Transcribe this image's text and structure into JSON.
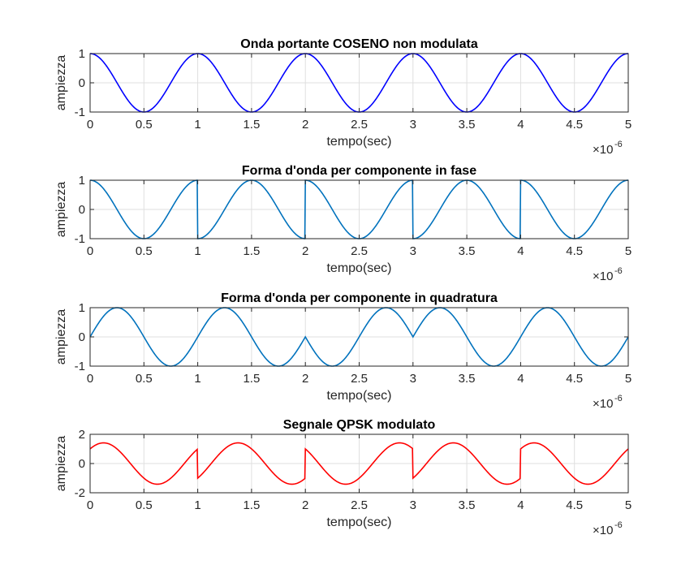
{
  "chart_data": [
    {
      "type": "line",
      "title": "Onda portante COSENO non modulata",
      "xlabel": "tempo(sec)",
      "ylabel": "ampiezza",
      "x_exponent_label": "×10",
      "x_exponent": "-6",
      "xlim": [
        0,
        5
      ],
      "ylim": [
        -1,
        1
      ],
      "xticks": [
        0,
        0.5,
        1,
        1.5,
        2,
        2.5,
        3,
        3.5,
        4,
        4.5,
        5
      ],
      "xtick_labels": [
        "0",
        "0.5",
        "1",
        "1.5",
        "2",
        "2.5",
        "3",
        "3.5",
        "4",
        "4.5",
        "5"
      ],
      "yticks": [
        -1,
        0,
        1
      ],
      "ytick_labels": [
        "-1",
        "0",
        "1"
      ],
      "grid": true,
      "color": "#0000ff",
      "series": [
        {
          "kind": "cos",
          "x": [
            0,
            0.25,
            0.5,
            0.75,
            1,
            1.25,
            1.5,
            1.75,
            2,
            2.25,
            2.5,
            2.75,
            3,
            3.25,
            3.5,
            3.75,
            4,
            4.25,
            4.5,
            4.75,
            5
          ],
          "y": [
            1,
            0,
            -1,
            0,
            1,
            0,
            -1,
            0,
            1,
            0,
            -1,
            0,
            1,
            0,
            -1,
            0,
            1,
            0,
            -1,
            0,
            1
          ]
        }
      ]
    },
    {
      "type": "line",
      "title": "Forma d'onda per componente in fase",
      "xlabel": "tempo(sec)",
      "ylabel": "ampiezza",
      "x_exponent_label": "×10",
      "x_exponent": "-6",
      "xlim": [
        0,
        5
      ],
      "ylim": [
        -1,
        1
      ],
      "xticks": [
        0,
        0.5,
        1,
        1.5,
        2,
        2.5,
        3,
        3.5,
        4,
        4.5,
        5
      ],
      "xtick_labels": [
        "0",
        "0.5",
        "1",
        "1.5",
        "2",
        "2.5",
        "3",
        "3.5",
        "4",
        "4.5",
        "5"
      ],
      "yticks": [
        -1,
        0,
        1
      ],
      "ytick_labels": [
        "-1",
        "0",
        "1"
      ],
      "grid": true,
      "color": "#0072bd",
      "series": [
        {
          "kind": "inphase",
          "x": [
            0,
            0.5,
            1,
            1,
            1.5,
            2,
            2,
            2.5,
            3,
            3,
            3.5,
            4,
            4,
            4.5,
            5
          ],
          "y": [
            1,
            -1,
            1,
            -1,
            1,
            -1,
            1,
            -1,
            1,
            -1,
            1,
            -1,
            1,
            -1,
            1
          ]
        }
      ]
    },
    {
      "type": "line",
      "title": "Forma d'onda per componente in quadratura",
      "xlabel": "tempo(sec)",
      "ylabel": "ampiezza",
      "x_exponent_label": "×10",
      "x_exponent": "-6",
      "xlim": [
        0,
        5
      ],
      "ylim": [
        -1,
        1
      ],
      "xticks": [
        0,
        0.5,
        1,
        1.5,
        2,
        2.5,
        3,
        3.5,
        4,
        4.5,
        5
      ],
      "xtick_labels": [
        "0",
        "0.5",
        "1",
        "1.5",
        "2",
        "2.5",
        "3",
        "3.5",
        "4",
        "4.5",
        "5"
      ],
      "yticks": [
        -1,
        0,
        1
      ],
      "ytick_labels": [
        "-1",
        "0",
        "1"
      ],
      "grid": true,
      "color": "#0072bd",
      "series": [
        {
          "kind": "quadrature",
          "x": [
            0,
            0.25,
            0.75,
            1,
            1.25,
            1.75,
            2,
            2.25,
            2.75,
            3,
            3.25,
            3.75,
            4,
            4.25,
            4.75,
            5
          ],
          "y": [
            0,
            1,
            -1,
            0,
            1,
            -1,
            0,
            -1,
            1,
            0,
            1,
            -1,
            0,
            1,
            -1,
            0
          ]
        }
      ]
    },
    {
      "type": "line",
      "title": "Segnale QPSK modulato",
      "xlabel": "tempo(sec)",
      "ylabel": "ampiezza",
      "x_exponent_label": "×10",
      "x_exponent": "-6",
      "xlim": [
        0,
        5
      ],
      "ylim": [
        -2,
        2
      ],
      "xticks": [
        0,
        0.5,
        1,
        1.5,
        2,
        2.5,
        3,
        3.5,
        4,
        4.5,
        5
      ],
      "xtick_labels": [
        "0",
        "0.5",
        "1",
        "1.5",
        "2",
        "2.5",
        "3",
        "3.5",
        "4",
        "4.5",
        "5"
      ],
      "yticks": [
        -2,
        0,
        2
      ],
      "ytick_labels": [
        "-2",
        "0",
        "2"
      ],
      "grid": true,
      "color": "#ff0000",
      "series": [
        {
          "kind": "qpsk",
          "x": [
            0,
            0.125,
            0.625,
            1,
            1,
            1.375,
            1.875,
            2,
            2,
            2.375,
            2.875,
            3,
            3,
            3.375,
            3.875,
            4,
            4,
            4.125,
            4.625,
            5
          ],
          "y": [
            1.0,
            1.414,
            -1.414,
            1.0,
            -0.9,
            1.414,
            -1.414,
            -1.0,
            1.0,
            -1.414,
            1.414,
            1.0,
            -0.9,
            1.414,
            -1.414,
            -1.0,
            1.0,
            1.414,
            -1.414,
            1.0
          ]
        }
      ]
    }
  ]
}
